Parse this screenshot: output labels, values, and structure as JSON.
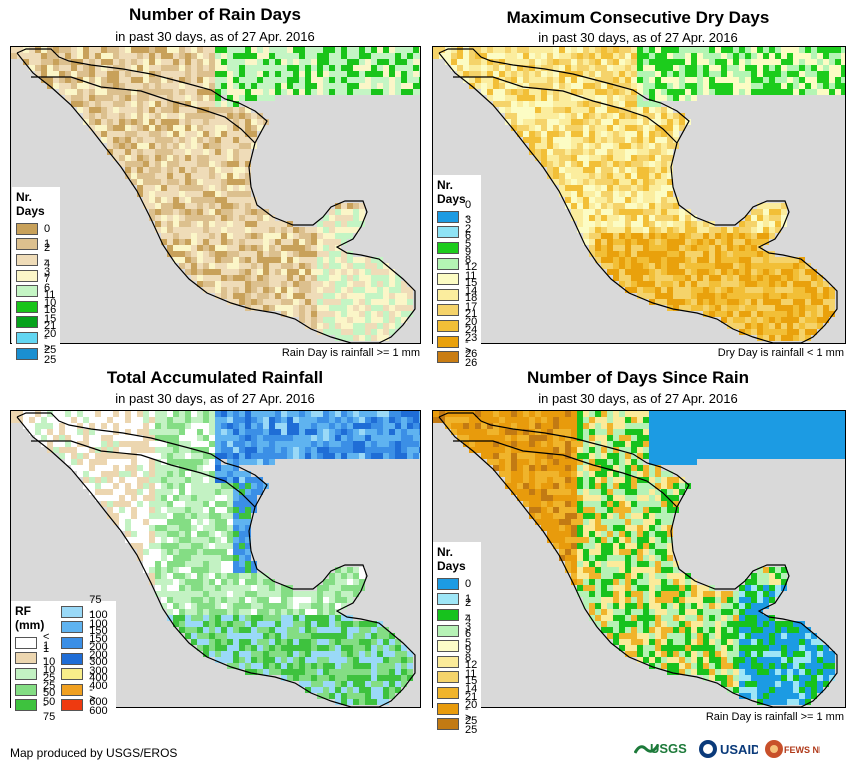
{
  "panels": [
    {
      "id": "rain-days",
      "title": "Number of Rain Days",
      "subtitle": "in past 30 days, as of 27 Apr. 2016",
      "note": "Rain Day is rainfall >= 1 mm",
      "legend_title": "Nr. Days",
      "legend": [
        {
          "label": "0",
          "color": "#c8a15a"
        },
        {
          "label": "1",
          "color": "#dcc08e"
        },
        {
          "label": "2 - 3",
          "color": "#efdcb8"
        },
        {
          "label": "4 - 6",
          "color": "#fbf6c8"
        },
        {
          "label": "7 - 10",
          "color": "#c4f5c4"
        },
        {
          "label": "11 - 15",
          "color": "#19c41a"
        },
        {
          "label": "16 - 20",
          "color": "#06a21c"
        },
        {
          "label": "21 - 25",
          "color": "#62d6f2"
        },
        {
          "label": "> 25",
          "color": "#1a8fd1"
        }
      ]
    },
    {
      "id": "dry-days",
      "title": "Maximum Consecutive Dry Days",
      "subtitle": "in past 30 days, as of 27 Apr. 2016",
      "note": "Dry Day is rainfall < 1 mm",
      "legend_title": "Nr. Days",
      "legend": [
        {
          "label": "0 - 2",
          "color": "#1c9be3"
        },
        {
          "label": "3 - 5",
          "color": "#8fe3f5"
        },
        {
          "label": "6 - 8",
          "color": "#1ccc1c"
        },
        {
          "label": "9 - 11",
          "color": "#b4f5b4"
        },
        {
          "label": "12 - 14",
          "color": "#fcfcc4"
        },
        {
          "label": "15 - 17",
          "color": "#fbed9e"
        },
        {
          "label": "18 - 20",
          "color": "#f5d36a"
        },
        {
          "label": "21 - 23",
          "color": "#f2bf37"
        },
        {
          "label": "24 - 26",
          "color": "#e9a10c"
        },
        {
          "label": "> 26",
          "color": "#c97d13"
        }
      ]
    },
    {
      "id": "rainfall",
      "title": "Total Accumulated Rainfall",
      "subtitle": "in past 30 days, as of 27 Apr. 2016",
      "note": "",
      "legend_title": "RF (mm)",
      "legend": [
        {
          "label": "< 1",
          "color": "#ffffff"
        },
        {
          "label": "1 - 10",
          "color": "#ecd6b0"
        },
        {
          "label": "10 - 25",
          "color": "#c3f2c3"
        },
        {
          "label": "25 - 50",
          "color": "#84dd84"
        },
        {
          "label": "50 - 75",
          "color": "#3ec23e"
        }
      ],
      "legend2": [
        {
          "label": "75 - 100",
          "color": "#9ad9f7"
        },
        {
          "label": "100 - 150",
          "color": "#5fb3f0"
        },
        {
          "label": "150 - 200",
          "color": "#3b8fe6"
        },
        {
          "label": "200 - 300",
          "color": "#1f6dd6"
        },
        {
          "label": "300 - 400",
          "color": "#f8ee8a"
        },
        {
          "label": "400 - 600",
          "color": "#f0a020"
        },
        {
          "label": "> 600",
          "color": "#ee3a10"
        }
      ]
    },
    {
      "id": "since-rain",
      "title": "Number of Days Since Rain",
      "subtitle": "in past 30 days, as of 27 Apr. 2016",
      "note": "Rain Day is rainfall >= 1 mm",
      "legend_title": "Nr. Days",
      "legend": [
        {
          "label": "0",
          "color": "#1c9be3"
        },
        {
          "label": "1",
          "color": "#9ee6f7"
        },
        {
          "label": "2 - 3",
          "color": "#17c21d"
        },
        {
          "label": "4 - 5",
          "color": "#b6f2b6"
        },
        {
          "label": "6 - 8",
          "color": "#fdfdc8"
        },
        {
          "label": "9 - 11",
          "color": "#fbeb9a"
        },
        {
          "label": "12 - 14",
          "color": "#f5d46b"
        },
        {
          "label": "15 - 20",
          "color": "#f0b42b"
        },
        {
          "label": "21 - 25",
          "color": "#e89b0c"
        },
        {
          "label": "> 25",
          "color": "#c27a13"
        }
      ]
    }
  ],
  "credit": "Map produced by USGS/EROS",
  "logos": [
    "USGS",
    "USAID",
    "FEWS NET"
  ],
  "colors": {
    "ocean": "#d9d9d9",
    "border": "#000000"
  }
}
